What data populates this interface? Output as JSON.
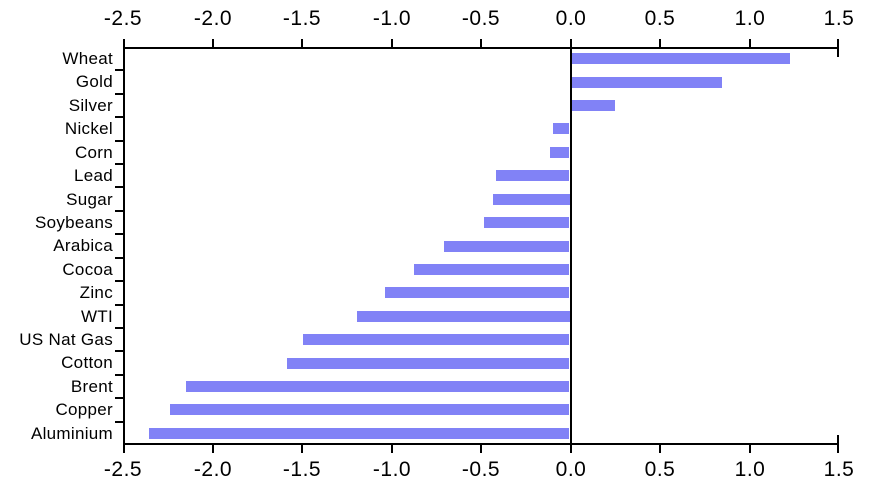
{
  "chart_data": {
    "type": "bar",
    "orientation": "horizontal",
    "title": "",
    "categories": [
      "Wheat",
      "Gold",
      "Silver",
      "Nickel",
      "Corn",
      "Lead",
      "Sugar",
      "Soybeans",
      "Arabica",
      "Cocoa",
      "Zinc",
      "WTI",
      "US Nat Gas",
      "Cotton",
      "Brent",
      "Copper",
      "Aluminium"
    ],
    "values": [
      1.22,
      0.84,
      0.24,
      -0.09,
      -0.11,
      -0.41,
      -0.43,
      -0.48,
      -0.7,
      -0.87,
      -1.03,
      -1.19,
      -1.49,
      -1.58,
      -2.14,
      -2.23,
      -2.35
    ],
    "xlim": [
      -2.5,
      1.5
    ],
    "x_ticks": [
      -2.5,
      -2.0,
      -1.5,
      -1.0,
      -0.5,
      0.0,
      0.5,
      1.0,
      1.5
    ],
    "x_tick_labels": [
      "-2.5",
      "-2.0",
      "-1.5",
      "-1.0",
      "-0.5",
      "0.0",
      "0.5",
      "1.0",
      "1.5"
    ],
    "x_tick_label_sides": [
      "top",
      "bottom"
    ],
    "grid": false,
    "legend": "none",
    "zero_line": true,
    "bar_color": "#8182f6",
    "axis_color": "#000000",
    "background_color": "#ffffff"
  }
}
